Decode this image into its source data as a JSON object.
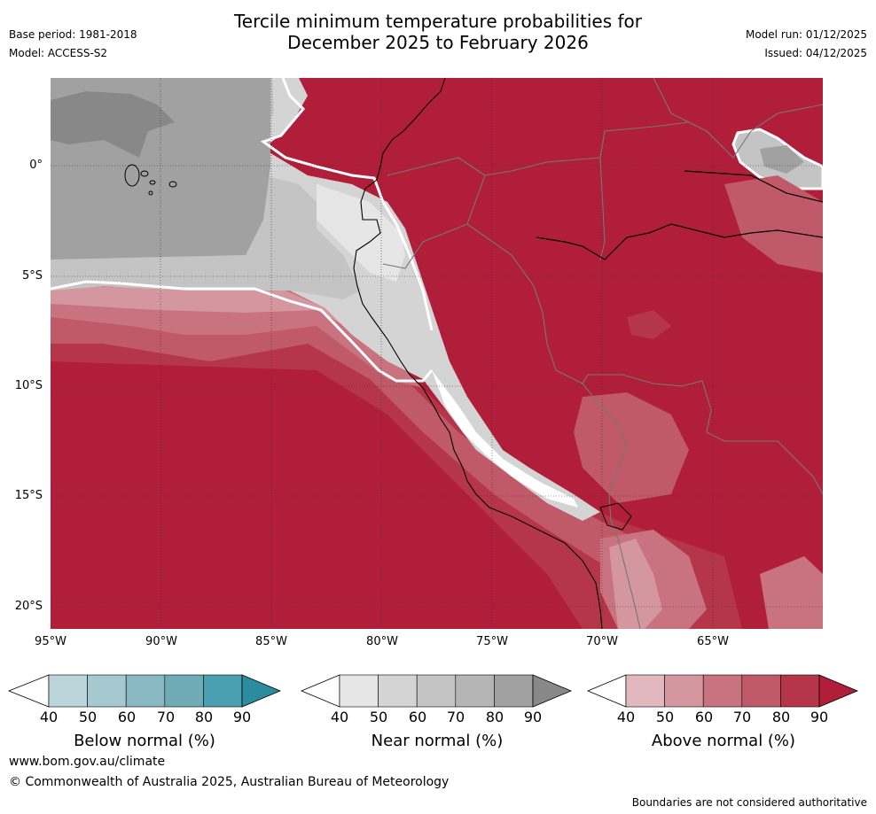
{
  "header": {
    "title_line1": "Tercile minimum temperature probabilities for",
    "title_line2": "December 2025 to February 2026",
    "base_period": "Base period: 1981-2018",
    "model": "Model: ACCESS-S2",
    "model_run": "Model run: 01/12/2025",
    "issued": "Issued: 04/12/2025"
  },
  "map": {
    "lat_labels": [
      "0°",
      "5°S",
      "10°S",
      "15°S",
      "20°S"
    ],
    "lon_labels": [
      "95°W",
      "90°W",
      "85°W",
      "80°W",
      "75°W",
      "70°W",
      "65°W"
    ]
  },
  "legends": [
    {
      "title": "Below normal (%)",
      "ticks": [
        "40",
        "50",
        "60",
        "70",
        "80",
        "90"
      ],
      "colors": [
        "#ffffff",
        "#bcd5db",
        "#a6c8cf",
        "#8ab8c2",
        "#6fabb7",
        "#4aa0b0",
        "#2a8c9e"
      ]
    },
    {
      "title": "Near normal (%)",
      "ticks": [
        "40",
        "50",
        "60",
        "70",
        "80",
        "90"
      ],
      "colors": [
        "#ffffff",
        "#e6e6e6",
        "#d4d4d4",
        "#c4c4c4",
        "#b5b5b5",
        "#a1a1a1",
        "#888888"
      ]
    },
    {
      "title": "Above normal (%)",
      "ticks": [
        "40",
        "50",
        "60",
        "70",
        "80",
        "90"
      ],
      "colors": [
        "#ffffff",
        "#e0b8bd",
        "#d4979f",
        "#c97380",
        "#c05a68",
        "#b63649",
        "#b11e39"
      ]
    }
  ],
  "footer": {
    "website": "www.bom.gov.au/climate",
    "copyright": "© Commonwealth of Australia 2025, Australian Bureau of Meteorology",
    "disclaimer": "Boundaries are not considered authoritative"
  }
}
